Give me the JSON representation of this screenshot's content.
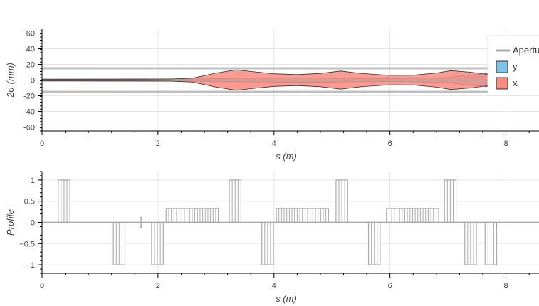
{
  "chart_data": [
    {
      "type": "area",
      "xlabel": "s (m)",
      "ylabel": "2σ (mm)",
      "xlim": [
        0,
        8.57
      ],
      "ylim": [
        -65,
        65
      ],
      "x_ticks": [
        0,
        2,
        4,
        6,
        8
      ],
      "y_ticks": [
        -60,
        -40,
        -20,
        0,
        20,
        40,
        60
      ],
      "grid": true,
      "legend_position": "top-right",
      "aperture": {
        "name": "Aperture",
        "color": "#aaaaaa",
        "values": [
          15,
          -15
        ]
      },
      "series": [
        {
          "name": "y",
          "color": "#7ec3e6",
          "x": [
            0,
            2.0,
            2.5,
            3.0,
            3.4,
            4.0,
            4.5,
            5.0,
            5.4,
            6.0,
            6.5,
            7.0,
            7.3,
            7.8,
            8.2,
            8.57
          ],
          "values": [
            1.2,
            1.4,
            1.3,
            1.8,
            2.3,
            2.5,
            2.6,
            2.5,
            2.2,
            1.8,
            2.4,
            3.4,
            6.0,
            9.0,
            10.5,
            11.0
          ]
        },
        {
          "name": "x",
          "color": "#f98b7e",
          "x": [
            0,
            1.8,
            2.2,
            2.6,
            3.0,
            3.35,
            3.6,
            4.0,
            4.4,
            4.8,
            5.15,
            5.5,
            6.0,
            6.4,
            6.8,
            7.05,
            7.4,
            7.8,
            8.2,
            8.57
          ],
          "values": [
            1.0,
            1.2,
            1.4,
            2.5,
            9.0,
            13.0,
            11.0,
            8.0,
            7.0,
            8.5,
            11.5,
            8.5,
            6.0,
            6.2,
            9.0,
            12.0,
            10.0,
            6.0,
            3.0,
            2.0
          ]
        }
      ]
    },
    {
      "type": "bar",
      "xlabel": "s (m)",
      "ylabel": "Profile",
      "xlim": [
        0,
        8.57
      ],
      "ylim": [
        -1.2,
        1.2
      ],
      "x_ticks": [
        0,
        2,
        4,
        6,
        8
      ],
      "y_ticks": [
        -1,
        -0.5,
        0,
        0.5,
        1
      ],
      "y_tick_labels": [
        "−1",
        "−0.5",
        "0",
        "0.5",
        "1"
      ],
      "grid": true,
      "color": "#aaaaaa",
      "elements": [
        {
          "start": 0.28,
          "end": 0.48,
          "value": 1
        },
        {
          "start": 1.23,
          "end": 1.43,
          "value": -1
        },
        {
          "start": 1.69,
          "end": 1.71,
          "value": 0.12
        },
        {
          "start": 1.69,
          "end": 1.71,
          "value": -0.12
        },
        {
          "start": 1.89,
          "end": 2.09,
          "value": -1
        },
        {
          "start": 2.14,
          "end": 3.04,
          "value": 0.33
        },
        {
          "start": 3.23,
          "end": 3.43,
          "value": 1
        },
        {
          "start": 3.79,
          "end": 3.99,
          "value": -1
        },
        {
          "start": 4.04,
          "end": 4.94,
          "value": 0.33
        },
        {
          "start": 5.07,
          "end": 5.27,
          "value": 1
        },
        {
          "start": 5.63,
          "end": 5.83,
          "value": -1
        },
        {
          "start": 5.94,
          "end": 6.84,
          "value": 0.33
        },
        {
          "start": 6.94,
          "end": 7.14,
          "value": 1
        },
        {
          "start": 7.29,
          "end": 7.49,
          "value": -1
        },
        {
          "start": 7.64,
          "end": 7.84,
          "value": -1
        }
      ]
    }
  ]
}
